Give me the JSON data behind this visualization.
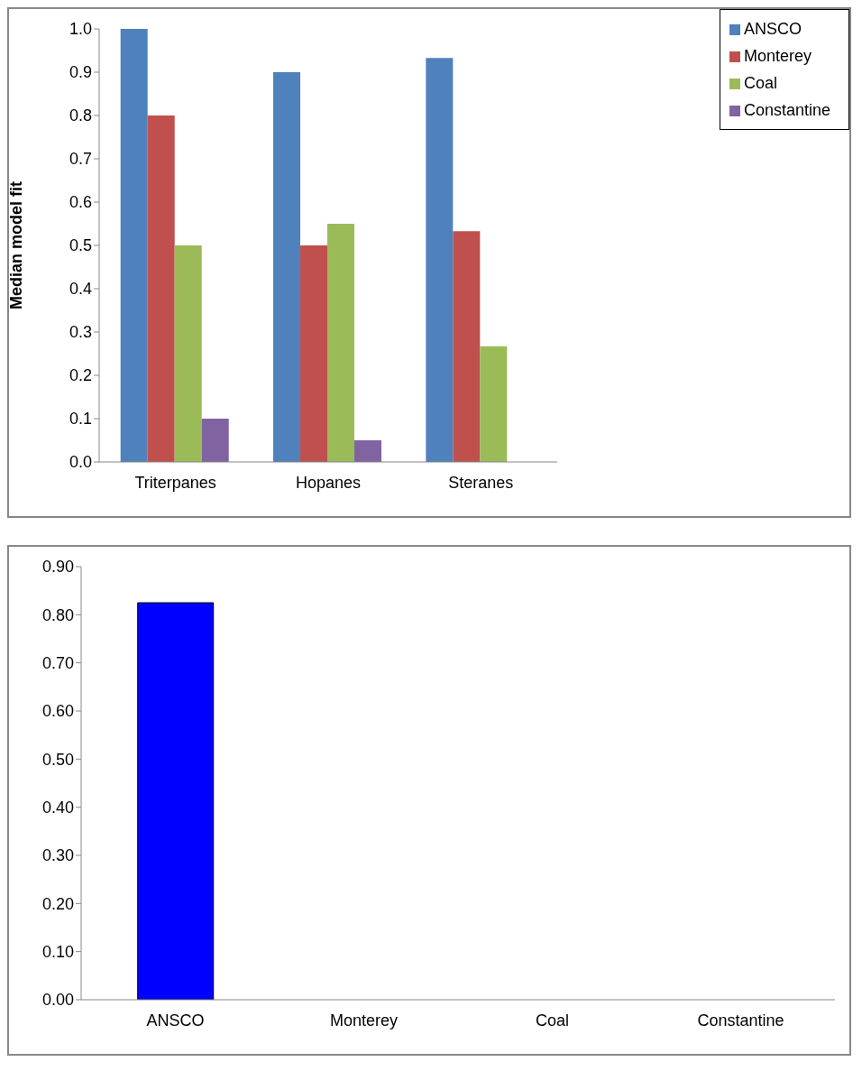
{
  "chart_data": [
    {
      "type": "bar",
      "ylabel": "Median model fit",
      "categories": [
        "Triterpanes",
        "Hopanes",
        "Steranes"
      ],
      "series": [
        {
          "name": "ANSCO",
          "color": "#4f81bd",
          "values": [
            1.0,
            0.9,
            0.933
          ]
        },
        {
          "name": "Monterey",
          "color": "#c0504d",
          "values": [
            0.8,
            0.5,
            0.533
          ]
        },
        {
          "name": "Coal",
          "color": "#9bbb59",
          "values": [
            0.5,
            0.55,
            0.267
          ]
        },
        {
          "name": "Constantine",
          "color": "#8064a2",
          "values": [
            0.1,
            0.05,
            0
          ]
        }
      ],
      "ylim": [
        0,
        1
      ],
      "yticks": [
        {
          "value": 0,
          "label": "0.0"
        },
        {
          "value": 0.1,
          "label": "0.1"
        },
        {
          "value": 0.2,
          "label": "0.2"
        },
        {
          "value": 0.3,
          "label": "0.3"
        },
        {
          "value": 0.4,
          "label": "0.4"
        },
        {
          "value": 0.5,
          "label": "0.5"
        },
        {
          "value": 0.6,
          "label": "0.6"
        },
        {
          "value": 0.7,
          "label": "0.7"
        },
        {
          "value": 0.8,
          "label": "0.8"
        },
        {
          "value": 0.9,
          "label": "0.9"
        },
        {
          "value": 1,
          "label": "1.0"
        }
      ],
      "legend": "top right",
      "grid": false
    },
    {
      "type": "bar",
      "categories": [
        "ANSCO",
        "Monterey",
        "Coal",
        "Constantine"
      ],
      "values": [
        0.825,
        0,
        0,
        0
      ],
      "color": "#0000ff",
      "ylim": [
        0,
        0.9
      ],
      "yticks": [
        {
          "value": 0,
          "label": "0.00"
        },
        {
          "value": 0.1,
          "label": "0.10"
        },
        {
          "value": 0.2,
          "label": "0.20"
        },
        {
          "value": 0.3,
          "label": "0.30"
        },
        {
          "value": 0.4,
          "label": "0.40"
        },
        {
          "value": 0.5,
          "label": "0.50"
        },
        {
          "value": 0.6,
          "label": "0.60"
        },
        {
          "value": 0.7,
          "label": "0.70"
        },
        {
          "value": 0.8,
          "label": "0.80"
        },
        {
          "value": 0.9,
          "label": "0.90"
        }
      ],
      "grid": false
    }
  ]
}
